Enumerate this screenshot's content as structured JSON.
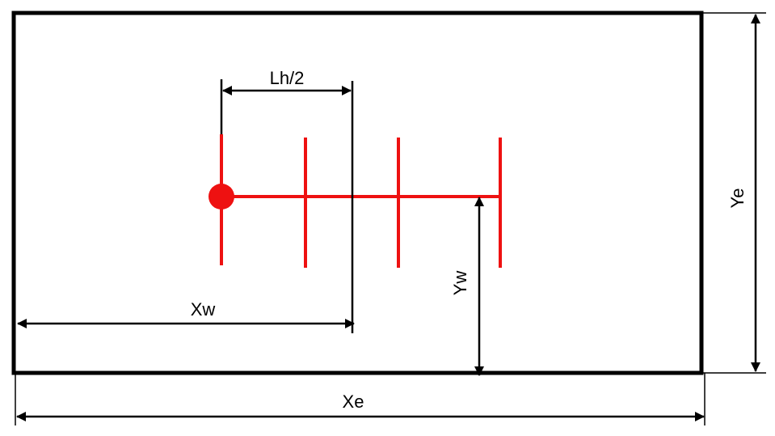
{
  "labels": {
    "half_length": "Lh/2",
    "x_w": "Xw",
    "y_w": "Yw",
    "x_e": "Xe",
    "y_e": "Ye"
  },
  "colors": {
    "outline": "#000000",
    "structure": "#ee1111",
    "background": "#ffffff"
  }
}
